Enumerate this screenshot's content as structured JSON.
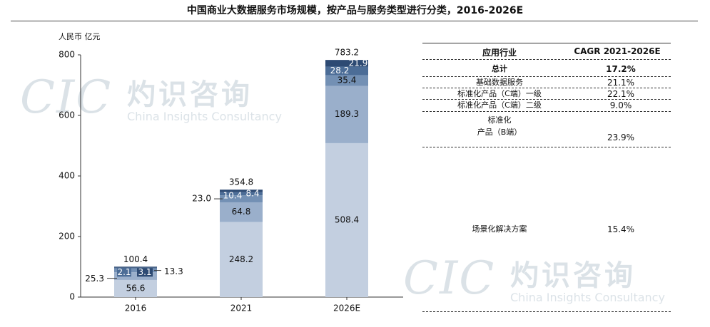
{
  "page": {
    "title": "中国商业大数据服务市场规模，按产品与服务类型进行分类，2016-2026E"
  },
  "chart_data": {
    "type": "bar",
    "stacked": true,
    "ylabel": "人民币 亿元",
    "ylim": [
      0,
      800
    ],
    "yticks": [
      0,
      200,
      400,
      600,
      800
    ],
    "categories": [
      "2016",
      "2021",
      "2026E"
    ],
    "totals": [
      "100.4",
      "354.8",
      "783.2"
    ],
    "series": [
      {
        "values": [
          56.6,
          248.2,
          508.4
        ],
        "labels": [
          "56.6",
          "248.2",
          "508.4"
        ],
        "color": "#c3cfe0"
      },
      {
        "values": [
          25.3,
          64.8,
          189.3
        ],
        "labels": [
          "25.3",
          "64.8",
          "189.3"
        ],
        "color": "#9aafcb"
      },
      {
        "values": [
          13.3,
          23.0,
          35.4
        ],
        "labels": [
          "13.3",
          "23.0",
          "35.4"
        ],
        "color": "#7390b4"
      },
      {
        "values": [
          2.1,
          10.4,
          28.2
        ],
        "labels": [
          "2.1",
          "10.4",
          "28.2"
        ],
        "color": "#4c6d97"
      },
      {
        "values": [
          3.1,
          8.4,
          21.9
        ],
        "labels": [
          "3.1",
          "8.4",
          "21.9"
        ],
        "color": "#2d4a73"
      }
    ]
  },
  "table": {
    "header": {
      "industry": "应用行业",
      "cagr": "CAGR 2021-2026E"
    },
    "rows": [
      {
        "name": "总计",
        "cagr": "17.2%",
        "bold": true
      },
      {
        "name": "基础数据服务",
        "cagr": "21.1%"
      },
      {
        "name": "标准化产品（C端）一级",
        "cagr": "22.1%"
      },
      {
        "name": "标准化产品（C端）二级",
        "cagr": "9.0%"
      },
      {
        "name": "标准化\n产品（B端）",
        "cagr": "23.9%"
      },
      {
        "name": "场景化解决方案",
        "cagr": "15.4%"
      }
    ]
  },
  "watermark": {
    "logo": "CIC",
    "cn": "灼识咨询",
    "en": "China Insights Consultancy"
  }
}
